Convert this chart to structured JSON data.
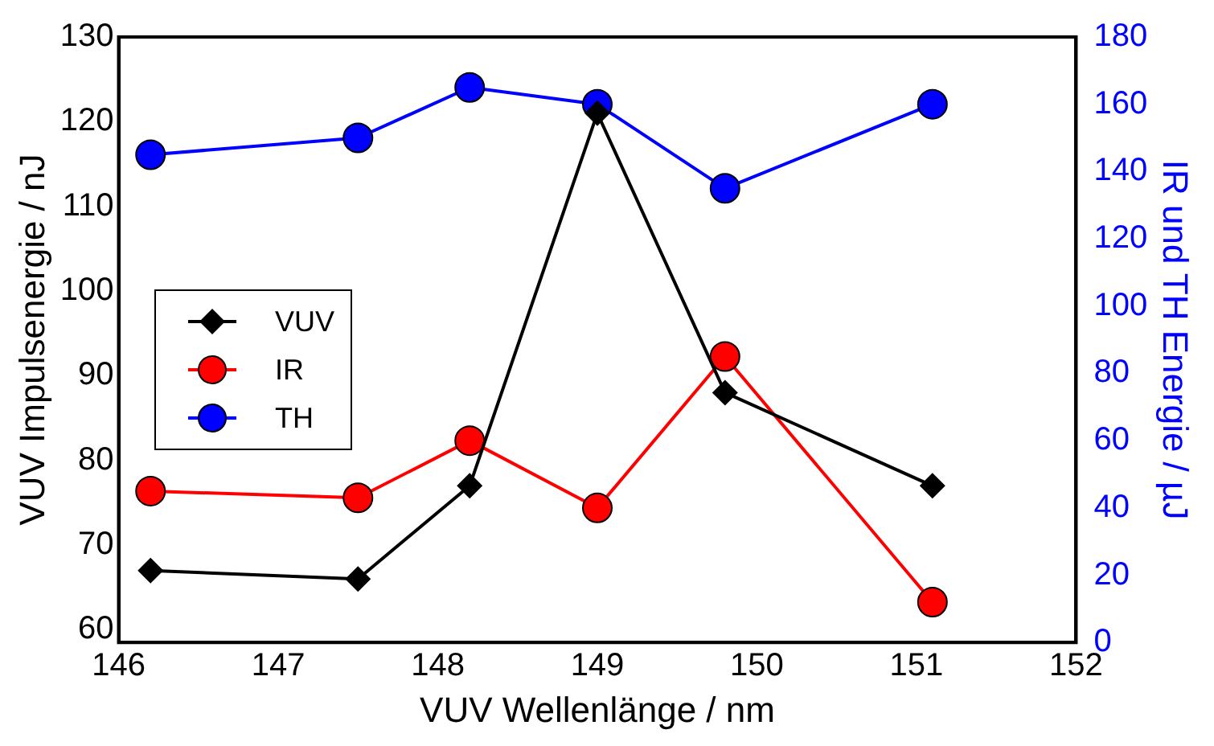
{
  "chart_data": {
    "type": "line",
    "xlabel": "VUV Wellenlänge / nm",
    "ylabel": "VUV Impulsenergie / nJ",
    "y2label": "IR und TH Energie / µJ",
    "x": [
      146.2,
      147.5,
      148.2,
      149,
      149.8,
      151.1
    ],
    "series": [
      {
        "name": "VUV",
        "color": "#000000",
        "marker": "diamond",
        "values": [
          67,
          66,
          77,
          121,
          88,
          77
        ]
      },
      {
        "name": "IR",
        "color": "#ff0000",
        "marker": "circle",
        "axis": "y2",
        "values": [
          45,
          43,
          60,
          40,
          85,
          12
        ]
      },
      {
        "name": "TH",
        "color": "#0000ff",
        "marker": "circle",
        "axis": "y2",
        "values": [
          145,
          150,
          165,
          160,
          135,
          160
        ]
      }
    ],
    "xlim": [
      146,
      152
    ],
    "xticks": [
      146,
      147,
      148,
      149,
      150,
      151,
      152
    ],
    "ylim": [
      58.5,
      130
    ],
    "yticks": [
      60,
      70,
      80,
      90,
      100,
      110,
      120,
      130
    ],
    "y2lim": [
      0,
      180
    ],
    "y2ticks": [
      0,
      20,
      40,
      60,
      80,
      100,
      120,
      140,
      160,
      180
    ],
    "grid": false,
    "legend": "left"
  }
}
